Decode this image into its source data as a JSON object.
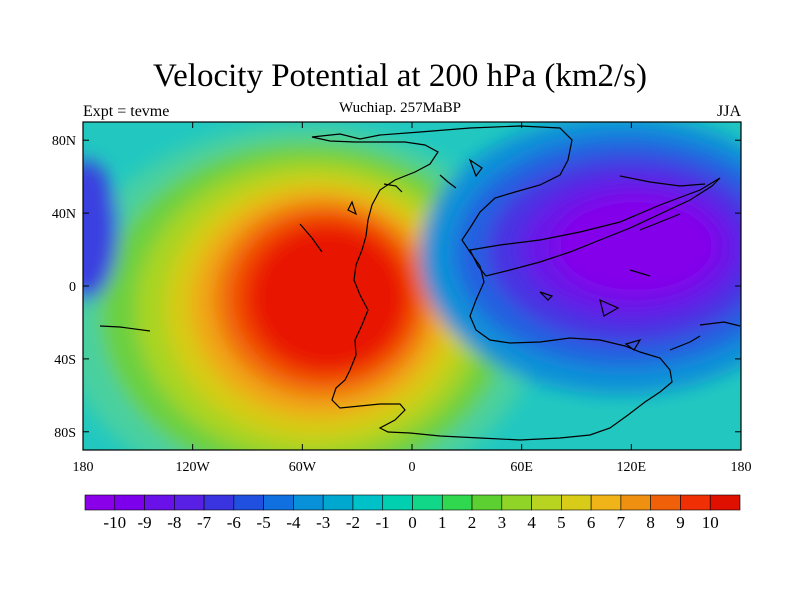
{
  "title": "Velocity Potential at 200 hPa (km2/s)",
  "subtitle": "Wuchiap. 257MaBP",
  "left_label": "Expt = tevme",
  "right_label": "JJA",
  "map": {
    "lat_ticks": [
      {
        "value": 80,
        "label": "80N"
      },
      {
        "value": 40,
        "label": "40N"
      },
      {
        "value": 0,
        "label": "0"
      },
      {
        "value": -40,
        "label": "40S"
      },
      {
        "value": -80,
        "label": "80S"
      }
    ],
    "lon_ticks": [
      {
        "value": -180,
        "label": "180"
      },
      {
        "value": -120,
        "label": "120W"
      },
      {
        "value": -60,
        "label": "60W"
      },
      {
        "value": 0,
        "label": "0"
      },
      {
        "value": 60,
        "label": "60E"
      },
      {
        "value": 120,
        "label": "120E"
      },
      {
        "value": 180,
        "label": "180"
      }
    ],
    "lon_range": [
      -180,
      180
    ],
    "lat_range": [
      -90,
      90
    ],
    "field_centers": [
      {
        "name": "positive-max",
        "lon": -60,
        "lat": -10,
        "value": 10
      },
      {
        "name": "negative-min",
        "lon": 100,
        "lat": 10,
        "value": -10
      },
      {
        "name": "west-edge-low",
        "lon": -180,
        "lat": 20,
        "value": -7
      }
    ]
  },
  "colorbar": {
    "labels": [
      "-10",
      "-9",
      "-8",
      "-7",
      "-6",
      "-5",
      "-4",
      "-3",
      "-2",
      "-1",
      "0",
      "1",
      "2",
      "3",
      "4",
      "5",
      "6",
      "7",
      "8",
      "9",
      "10"
    ],
    "colors": [
      "#8a00e8",
      "#7d00ec",
      "#6a10e8",
      "#5820e4",
      "#3a34e0",
      "#2050e0",
      "#1070e0",
      "#0890d8",
      "#00a8d0",
      "#00c0c8",
      "#00d0b0",
      "#10d888",
      "#30d850",
      "#5cd030",
      "#90d428",
      "#b8d420",
      "#d8cc18",
      "#f0b418",
      "#f09010",
      "#f06008",
      "#f03004",
      "#e01000"
    ]
  }
}
